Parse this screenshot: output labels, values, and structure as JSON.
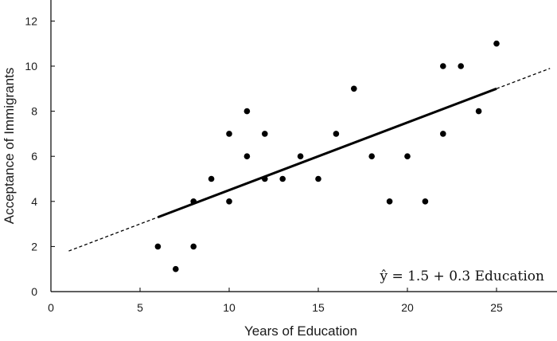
{
  "chart_data": {
    "type": "scatter",
    "title": "",
    "xlabel": "Years of Education",
    "ylabel": "Acceptance of Immigrants",
    "xlim": [
      0,
      28
    ],
    "ylim": [
      0,
      13
    ],
    "xticks": [
      0,
      5,
      10,
      15,
      20,
      25
    ],
    "yticks": [
      0,
      2,
      4,
      6,
      8,
      10,
      12
    ],
    "grid": false,
    "points": [
      {
        "x": 6,
        "y": 2
      },
      {
        "x": 7,
        "y": 1
      },
      {
        "x": 8,
        "y": 2
      },
      {
        "x": 8,
        "y": 4
      },
      {
        "x": 9,
        "y": 5
      },
      {
        "x": 10,
        "y": 4
      },
      {
        "x": 10,
        "y": 7
      },
      {
        "x": 11,
        "y": 6
      },
      {
        "x": 11,
        "y": 8
      },
      {
        "x": 12,
        "y": 5
      },
      {
        "x": 12,
        "y": 7
      },
      {
        "x": 13,
        "y": 5
      },
      {
        "x": 14,
        "y": 6
      },
      {
        "x": 15,
        "y": 5
      },
      {
        "x": 16,
        "y": 7
      },
      {
        "x": 17,
        "y": 9
      },
      {
        "x": 18,
        "y": 6
      },
      {
        "x": 19,
        "y": 4
      },
      {
        "x": 20,
        "y": 6
      },
      {
        "x": 21,
        "y": 4
      },
      {
        "x": 22,
        "y": 7
      },
      {
        "x": 22,
        "y": 10
      },
      {
        "x": 23,
        "y": 10
      },
      {
        "x": 24,
        "y": 8
      },
      {
        "x": 25,
        "y": 11
      }
    ],
    "regression": {
      "intercept": 1.5,
      "slope": 0.3,
      "solid_range": [
        6,
        25
      ],
      "dashed_range": [
        1,
        28
      ],
      "equation": "ŷ = 1.5 + 0.3 Education"
    }
  }
}
